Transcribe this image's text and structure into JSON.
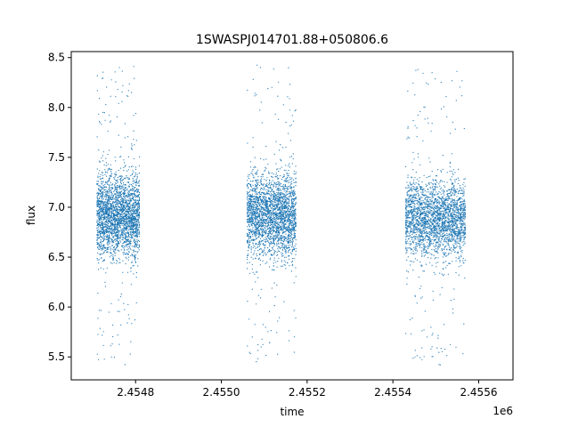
{
  "chart_data": {
    "type": "scatter",
    "title": "1SWASPJ014701.88+050806.6",
    "xlabel": "time",
    "ylabel": "flux",
    "x_offset_label": "1e6",
    "xlim": [
      2454650,
      2455680
    ],
    "ylim": [
      5.27,
      8.56
    ],
    "xticks": [
      2454800,
      2455000,
      2455200,
      2455400,
      2455600
    ],
    "xtick_labels": [
      "2.4548",
      "2.4550",
      "2.4552",
      "2.4554",
      "2.4556"
    ],
    "yticks": [
      5.5,
      6.0,
      6.5,
      7.0,
      7.5,
      8.0,
      8.5
    ],
    "ytick_labels": [
      "5.5",
      "6.0",
      "6.5",
      "7.0",
      "7.5",
      "8.0",
      "8.5"
    ],
    "grid": false,
    "marker_color": "#1f77b4",
    "series": [
      {
        "observing_season": 1,
        "x_range": [
          2454710,
          2454810
        ],
        "flux_median": 6.92,
        "flux_core_range": [
          6.6,
          7.25
        ],
        "flux_min": 5.42,
        "flux_max": 8.45
      },
      {
        "observing_season": 2,
        "x_range": [
          2455060,
          2455175
        ],
        "flux_median": 6.92,
        "flux_core_range": [
          6.6,
          7.25
        ],
        "flux_min": 5.43,
        "flux_max": 8.43
      },
      {
        "observing_season": 3,
        "x_range": [
          2455430,
          2455570
        ],
        "flux_median": 6.88,
        "flux_core_range": [
          6.6,
          7.2
        ],
        "flux_min": 5.42,
        "flux_max": 8.42
      }
    ]
  }
}
